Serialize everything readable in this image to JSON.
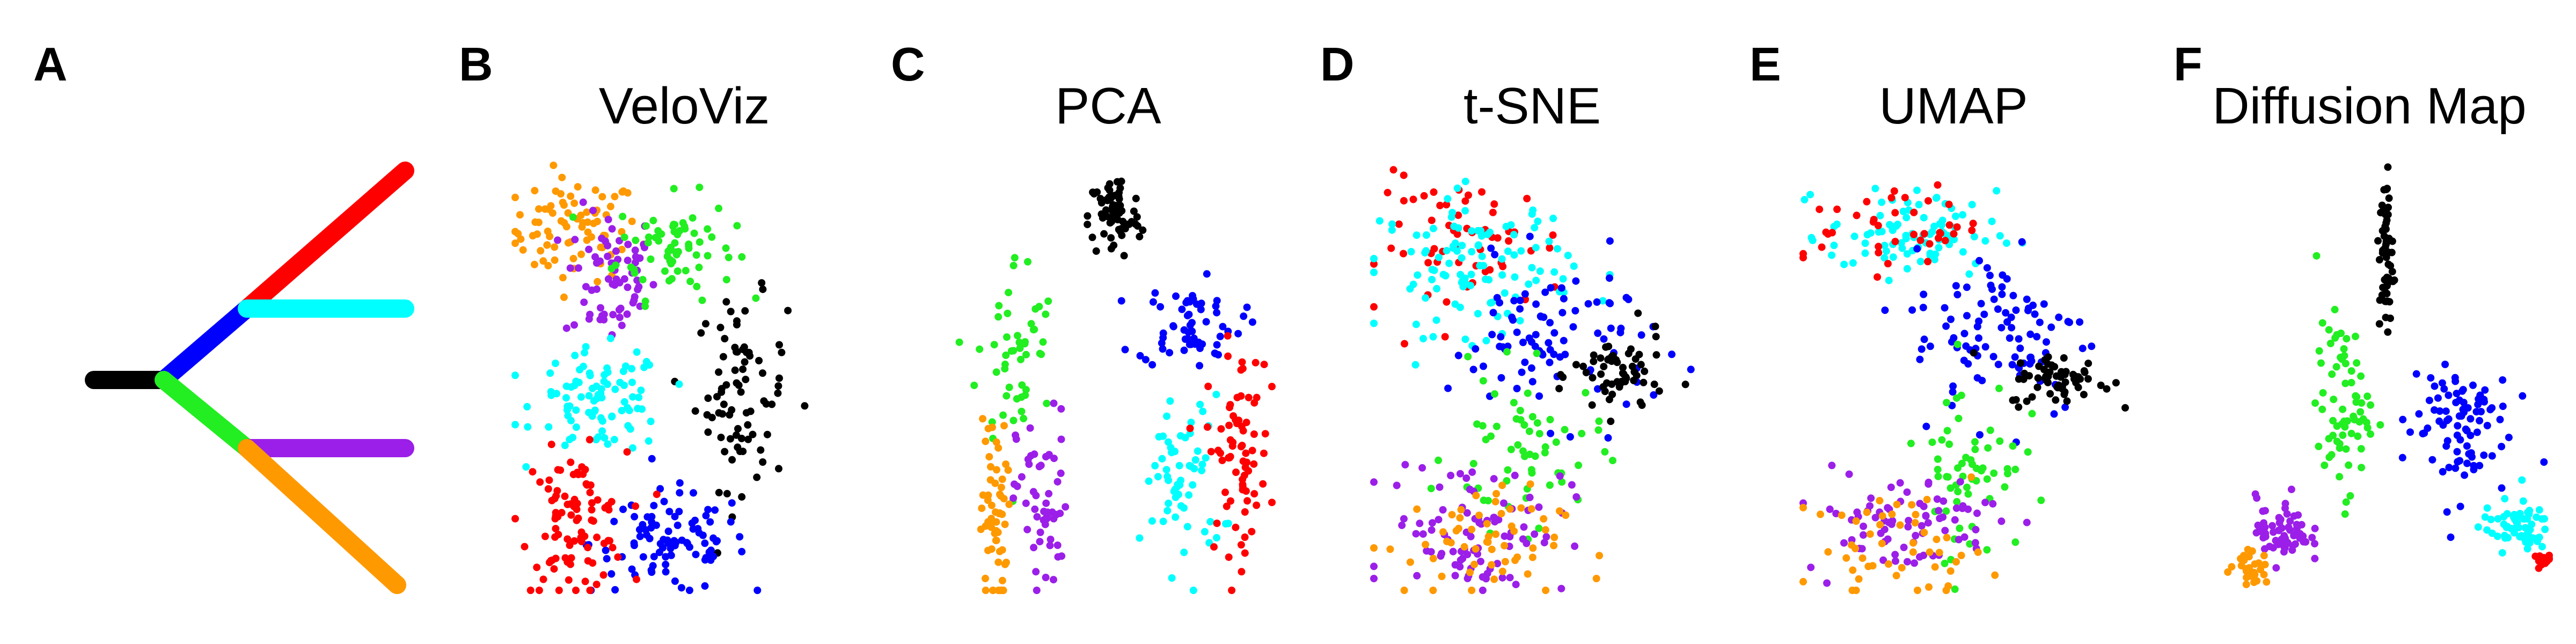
{
  "colors": {
    "black": "#000000",
    "blue": "#0000ff",
    "red": "#ff0000",
    "cyan": "#00ffff",
    "green": "#22ee22",
    "purple": "#9b1fe8",
    "orange": "#ff9900"
  },
  "chart_data": [
    {
      "panel": "A",
      "title": "",
      "type": "trajectory-diagram",
      "segments": [
        {
          "color": "black"
        },
        {
          "color": "blue"
        },
        {
          "color": "red"
        },
        {
          "color": "cyan"
        },
        {
          "color": "green"
        },
        {
          "color": "purple"
        },
        {
          "color": "orange"
        }
      ]
    },
    {
      "panel": "B",
      "title": "VeloViz",
      "type": "scatter",
      "axes_shown": false,
      "clusters": [
        {
          "color": "orange",
          "n": 80,
          "cx": 0.18,
          "cy": 0.84,
          "sx": 0.1,
          "sy": 0.06
        },
        {
          "color": "purple",
          "n": 70,
          "cx": 0.29,
          "cy": 0.73,
          "sx": 0.07,
          "sy": 0.08
        },
        {
          "color": "green",
          "n": 70,
          "cx": 0.49,
          "cy": 0.8,
          "sx": 0.09,
          "sy": 0.06
        },
        {
          "color": "black",
          "n": 80,
          "cx": 0.69,
          "cy": 0.46,
          "sx": 0.07,
          "sy": 0.11
        },
        {
          "color": "blue",
          "n": 95,
          "cx": 0.47,
          "cy": 0.11,
          "sx": 0.12,
          "sy": 0.06
        },
        {
          "color": "cyan",
          "n": 90,
          "cx": 0.26,
          "cy": 0.44,
          "sx": 0.1,
          "sy": 0.06
        },
        {
          "color": "red",
          "n": 95,
          "cx": 0.18,
          "cy": 0.16,
          "sx": 0.08,
          "sy": 0.08
        }
      ]
    },
    {
      "panel": "C",
      "title": "PCA",
      "type": "scatter",
      "axes_shown": false,
      "clusters": [
        {
          "color": "black",
          "n": 70,
          "cx": 0.52,
          "cy": 0.87,
          "sx": 0.04,
          "sy": 0.05
        },
        {
          "color": "green",
          "n": 50,
          "cx": 0.22,
          "cy": 0.55,
          "sx": 0.06,
          "sy": 0.12
        },
        {
          "color": "blue",
          "n": 60,
          "cx": 0.75,
          "cy": 0.62,
          "sx": 0.08,
          "sy": 0.05
        },
        {
          "color": "orange",
          "n": 60,
          "cx": 0.15,
          "cy": 0.15,
          "sx": 0.02,
          "sy": 0.13
        },
        {
          "color": "purple",
          "n": 55,
          "cx": 0.3,
          "cy": 0.2,
          "sx": 0.04,
          "sy": 0.11
        },
        {
          "color": "cyan",
          "n": 60,
          "cx": 0.73,
          "cy": 0.25,
          "sx": 0.06,
          "sy": 0.1
        },
        {
          "color": "red",
          "n": 75,
          "cx": 0.9,
          "cy": 0.33,
          "sx": 0.05,
          "sy": 0.12
        }
      ]
    },
    {
      "panel": "D",
      "title": "t-SNE",
      "type": "scatter",
      "axes_shown": false,
      "clusters": [
        {
          "color": "red",
          "n": 60,
          "cx": 0.3,
          "cy": 0.8,
          "sx": 0.15,
          "sy": 0.08
        },
        {
          "color": "cyan",
          "n": 110,
          "cx": 0.32,
          "cy": 0.76,
          "sx": 0.15,
          "sy": 0.08
        },
        {
          "color": "blue",
          "n": 90,
          "cx": 0.55,
          "cy": 0.58,
          "sx": 0.16,
          "sy": 0.09
        },
        {
          "color": "black",
          "n": 60,
          "cx": 0.76,
          "cy": 0.5,
          "sx": 0.07,
          "sy": 0.05
        },
        {
          "color": "green",
          "n": 60,
          "cx": 0.47,
          "cy": 0.32,
          "sx": 0.12,
          "sy": 0.09
        },
        {
          "color": "purple",
          "n": 90,
          "cx": 0.32,
          "cy": 0.15,
          "sx": 0.14,
          "sy": 0.08
        },
        {
          "color": "orange",
          "n": 60,
          "cx": 0.3,
          "cy": 0.1,
          "sx": 0.14,
          "sy": 0.07
        }
      ]
    },
    {
      "panel": "E",
      "title": "UMAP",
      "type": "scatter",
      "axes_shown": false,
      "clusters": [
        {
          "color": "cyan",
          "n": 90,
          "cx": 0.34,
          "cy": 0.83,
          "sx": 0.13,
          "sy": 0.05
        },
        {
          "color": "red",
          "n": 40,
          "cx": 0.28,
          "cy": 0.85,
          "sx": 0.14,
          "sy": 0.05
        },
        {
          "color": "blue",
          "n": 100,
          "cx": 0.62,
          "cy": 0.6,
          "sx": 0.14,
          "sy": 0.1
        },
        {
          "color": "black",
          "n": 60,
          "cx": 0.8,
          "cy": 0.49,
          "sx": 0.08,
          "sy": 0.03
        },
        {
          "color": "green",
          "n": 60,
          "cx": 0.52,
          "cy": 0.3,
          "sx": 0.08,
          "sy": 0.11
        },
        {
          "color": "purple",
          "n": 80,
          "cx": 0.3,
          "cy": 0.16,
          "sx": 0.15,
          "sy": 0.06
        },
        {
          "color": "orange",
          "n": 50,
          "cx": 0.3,
          "cy": 0.1,
          "sx": 0.14,
          "sy": 0.06
        }
      ]
    },
    {
      "panel": "F",
      "title": "Diffusion Map",
      "type": "scatter",
      "axes_shown": false,
      "clusters": [
        {
          "color": "black",
          "n": 60,
          "cx": 0.51,
          "cy": 0.78,
          "sx": 0.01,
          "sy": 0.1
        },
        {
          "color": "green",
          "n": 70,
          "cx": 0.38,
          "cy": 0.42,
          "sx": 0.04,
          "sy": 0.1
        },
        {
          "color": "blue",
          "n": 90,
          "cx": 0.72,
          "cy": 0.38,
          "sx": 0.08,
          "sy": 0.09
        },
        {
          "color": "cyan",
          "n": 60,
          "cx": 0.9,
          "cy": 0.14,
          "sx": 0.05,
          "sy": 0.03
        },
        {
          "color": "red",
          "n": 15,
          "cx": 0.98,
          "cy": 0.05,
          "sx": 0.02,
          "sy": 0.01
        },
        {
          "color": "purple",
          "n": 70,
          "cx": 0.2,
          "cy": 0.13,
          "sx": 0.04,
          "sy": 0.04
        },
        {
          "color": "orange",
          "n": 30,
          "cx": 0.1,
          "cy": 0.04,
          "sx": 0.03,
          "sy": 0.02
        }
      ]
    }
  ]
}
